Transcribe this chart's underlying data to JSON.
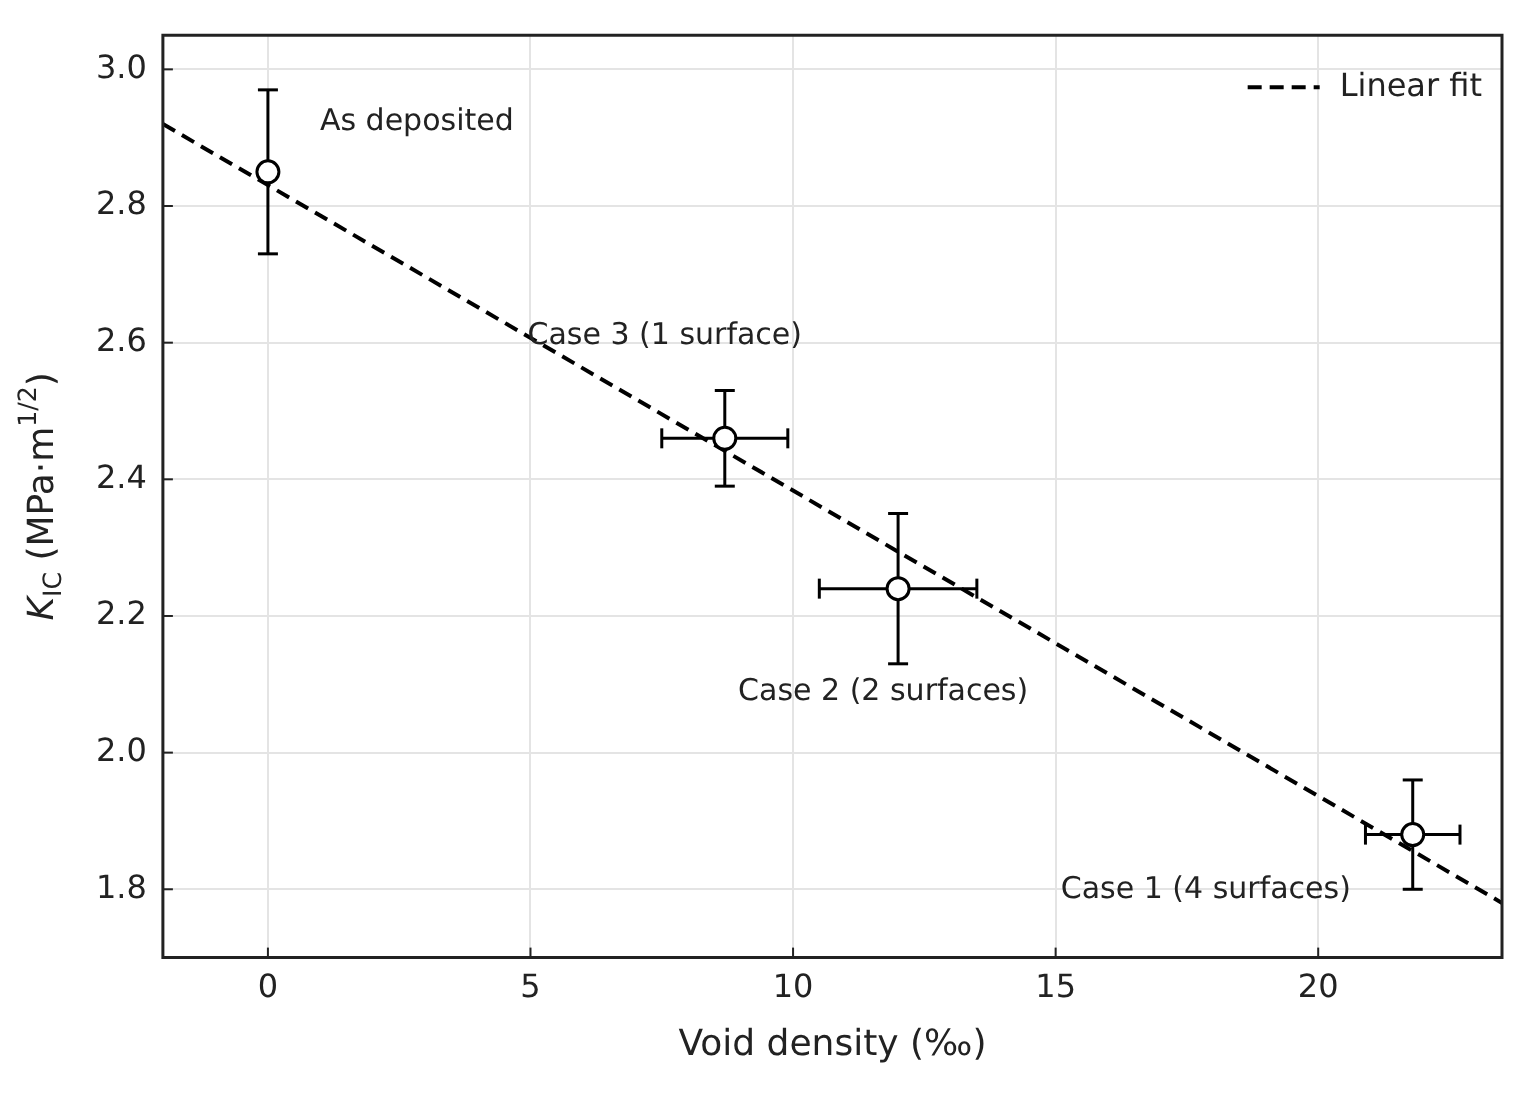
{
  "chart_data": {
    "type": "scatter",
    "xlabel": "Void density (‰)",
    "ylabel": "K$_{IC}$ (MPa·m$^{1/2}$)",
    "xlim": [
      -2,
      23.5
    ],
    "xticks": [
      0,
      5,
      10,
      15,
      20
    ],
    "ylim": [
      1.7,
      3.05
    ],
    "yticks": [
      {
        "value": 1.8,
        "label": "1.8"
      },
      {
        "value": 2.0,
        "label": "2.0"
      },
      2.2,
      2.4,
      2.6,
      2.8,
      {
        "value": 3.0,
        "label": "3.0"
      }
    ],
    "grid": true,
    "legend": "top right",
    "marker": "circle",
    "series": [
      {
        "color": "#000000",
        "x": [
          0,
          8.7,
          12,
          21.8
        ],
        "values": [
          2.85,
          2.46,
          2.24,
          1.88
        ],
        "errors": [
          0.12,
          0.07,
          0.11,
          0.08
        ],
        "xerrors": [
          null,
          1.2,
          1.5,
          0.9
        ]
      },
      {
        "type": "line",
        "name": "Linear fit",
        "color": "#000000",
        "line_style": "dashed",
        "marker": "none",
        "x": [
          -2,
          23.5
        ],
        "values": [
          2.92,
          1.78
        ]
      }
    ],
    "annotations": [
      {
        "text": "As deposited",
        "x": 0,
        "y": 2.85
      },
      {
        "text": "Case 3 (1 surface)",
        "x": 8.7,
        "y": 2.46
      },
      {
        "text": "Case 2 (2 surfaces)",
        "x": 12,
        "y": 2.24
      },
      {
        "text": "Case 1 (4 surfaces)",
        "x": 21.8,
        "y": 1.88
      }
    ]
  }
}
